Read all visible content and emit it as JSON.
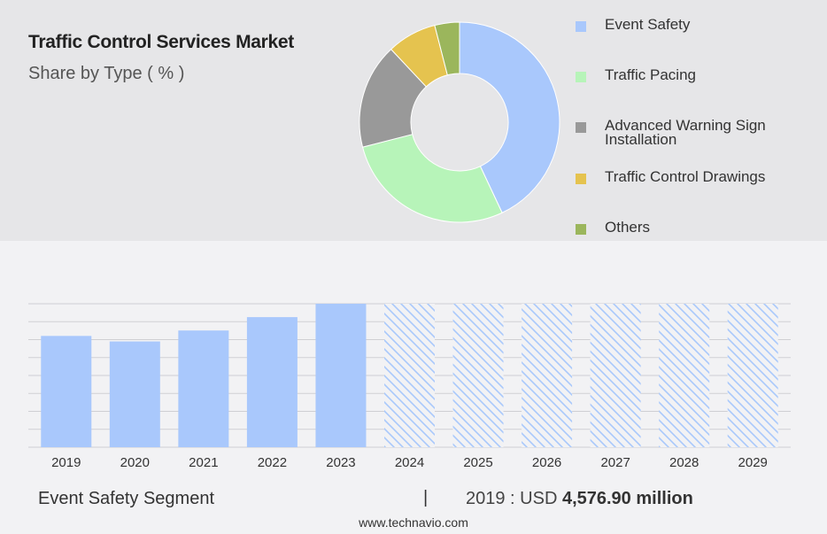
{
  "header": {
    "title": "Traffic Control Services Market",
    "subtitle": "Share by Type ( % )"
  },
  "chart_data": [
    {
      "type": "pie",
      "variant": "donut",
      "title": "Traffic Control Services Market",
      "subtitle": "Share by Type ( % )",
      "legend_position": "right",
      "slices": [
        {
          "label": "Event Safety",
          "value": 43,
          "color": "#a9c8fc"
        },
        {
          "label": "Traffic Pacing",
          "value": 28,
          "color": "#b7f4b9"
        },
        {
          "label": "Advanced Warning Sign Installation",
          "value": 17,
          "color": "#999999"
        },
        {
          "label": "Traffic Control Drawings",
          "value": 8,
          "color": "#e5c34f"
        },
        {
          "label": "Others",
          "value": 4,
          "color": "#9bb65c"
        }
      ]
    },
    {
      "type": "bar",
      "categories": [
        "2019",
        "2020",
        "2021",
        "2022",
        "2023",
        "2024",
        "2025",
        "2026",
        "2027",
        "2028",
        "2029"
      ],
      "values": [
        4576.9,
        4350,
        4800,
        5350,
        5900,
        5900,
        5900,
        5900,
        5900,
        5900,
        5900
      ],
      "forecast_from": "2024",
      "ylim": [
        0,
        5900
      ],
      "grid": true,
      "bar_color": "#a9c8fc",
      "forecast_style": "hatched"
    }
  ],
  "footer": {
    "segment_label": "Event Safety Segment",
    "separator": "|",
    "year_text": "2019 : USD",
    "amount_text": "4,576.90 million",
    "source": "www.technavio.com"
  }
}
